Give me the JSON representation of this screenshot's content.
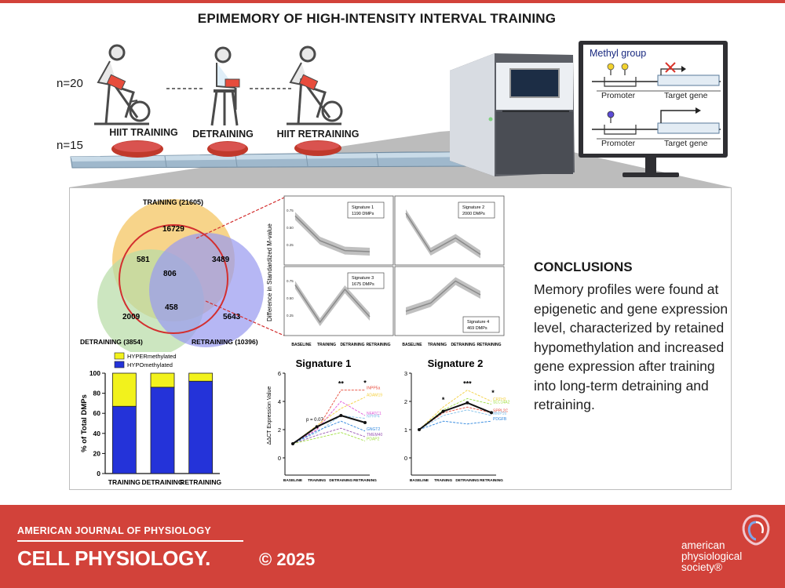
{
  "title": "EPIMEMORY OF HIGH-INTENSITY INTERVAL TRAINING",
  "study": {
    "n_top": "n=20",
    "n_bottom": "n=15",
    "phases": [
      "HIIT TRAINING",
      "DETRAINING",
      "HIIT RETRAINING"
    ]
  },
  "monitor": {
    "methyl_group": "Methyl group",
    "promoter": "Promoter",
    "target_gene": "Target gene"
  },
  "venn": {
    "training_label": "TRAINING (21605)",
    "detraining_label": "DETRAINING (3854)",
    "retraining_label": "RETRAINING (10396)",
    "regions": {
      "training_only": "16729",
      "train_detrain": "581",
      "train_retrain": "3489",
      "all_three": "806",
      "detrain_retrain": "458",
      "detrain_only": "2009",
      "retrain_only": "5643"
    },
    "colors": {
      "training": "#f5c869",
      "detraining": "#b9dca8",
      "retraining": "#9a9bf0",
      "circle": "#d32f2f"
    }
  },
  "signatures": {
    "ylabel": "Difference in Standardized M-value",
    "xlabels": [
      "BASELINE",
      "TRAINING",
      "DETRAINING",
      "RETRAINING"
    ],
    "ticks": [
      "0.75",
      "0.50",
      "0.25",
      "0.75"
    ],
    "panels": [
      {
        "name": "Signature 1",
        "count": "1190 DMPs",
        "values": [
          0.75,
          0.3,
          0.12,
          0.1
        ]
      },
      {
        "name": "Signature 2",
        "count": "2000 DMPs",
        "values": [
          0.8,
          0.1,
          0.35,
          0.05
        ]
      },
      {
        "name": "Signature 3",
        "count": "1675 DMPs",
        "values": [
          0.78,
          0.1,
          0.7,
          0.2
        ]
      },
      {
        "name": "Signature 4",
        "count": "469 DMPs",
        "values": [
          0.3,
          0.45,
          0.85,
          0.6
        ]
      }
    ]
  },
  "chart_data": [
    {
      "type": "bar",
      "stacked": true,
      "categories": [
        "TRAINING",
        "DETRAINING",
        "RETRAINING"
      ],
      "series": [
        {
          "name": "HYPOmethylated",
          "values": [
            67,
            86,
            92
          ],
          "color": "#2433d9"
        },
        {
          "name": "HYPERmethylated",
          "values": [
            33,
            14,
            8
          ],
          "color": "#f2f21c"
        }
      ],
      "ylabel": "% of Total DMPs",
      "ylim": [
        0,
        100
      ],
      "yticks": [
        0,
        20,
        40,
        60,
        80,
        100
      ],
      "legend": "top"
    },
    {
      "type": "line",
      "title": "Signature 1",
      "ylabel": "ΔΔCT Expression Value",
      "x": [
        "BASELINE",
        "TRAINING",
        "DETRAINING",
        "RETRAINING"
      ],
      "ylim": [
        0,
        6
      ],
      "yticks": [
        0,
        2,
        4,
        6
      ],
      "series": [
        {
          "name": "INPP5a",
          "values": [
            1,
            2.0,
            4.8,
            4.8
          ],
          "color": "#e74c3c"
        },
        {
          "name": "ADAM19",
          "values": [
            1,
            2.3,
            3.5,
            4.3
          ],
          "color": "#f4d03f"
        },
        {
          "name": "NFATC1",
          "values": [
            1,
            2.0,
            4.0,
            3.0
          ],
          "color": "#e056d6"
        },
        {
          "name": "NPHP4",
          "values": [
            1,
            1.8,
            3.0,
            2.8
          ],
          "color": "#85c1e9"
        },
        {
          "name": "GNGT2",
          "values": [
            1,
            1.9,
            2.6,
            1.9
          ],
          "color": "#2e86de"
        },
        {
          "name": "TMEM40",
          "values": [
            1,
            1.6,
            2.1,
            1.5
          ],
          "color": "#9b59b6"
        },
        {
          "name": "PDAP2",
          "values": [
            1,
            1.4,
            1.8,
            1.2
          ],
          "color": "#a3e048"
        },
        {
          "name": "",
          "values": [
            1,
            2.2,
            3.0,
            2.5
          ],
          "color": "#111111"
        }
      ],
      "annotations": [
        "p = 0.07",
        "**",
        "*"
      ]
    },
    {
      "type": "line",
      "title": "Signature 2",
      "x": [
        "BASELINE",
        "TRAINING",
        "DETRAINING",
        "RETRAINING"
      ],
      "ylim": [
        0,
        3
      ],
      "yticks": [
        0,
        1,
        2,
        3
      ],
      "series": [
        {
          "name": "CRTH2",
          "values": [
            1,
            1.8,
            2.4,
            2.0
          ],
          "color": "#f4d03f"
        },
        {
          "name": "SLC14A2",
          "values": [
            1,
            1.7,
            2.1,
            1.9
          ],
          "color": "#a3e048"
        },
        {
          "name": "SPPL2C",
          "values": [
            1,
            1.6,
            1.8,
            1.6
          ],
          "color": "#e74c3c"
        },
        {
          "name": "MMP16",
          "values": [
            1,
            1.5,
            1.7,
            1.5
          ],
          "color": "#85c1e9"
        },
        {
          "name": "PDGFB",
          "values": [
            1,
            1.3,
            1.2,
            1.3
          ],
          "color": "#2e86de"
        },
        {
          "name": "",
          "values": [
            1,
            1.65,
            1.95,
            1.6
          ],
          "color": "#111111"
        }
      ],
      "annotations": [
        "*",
        "***",
        "*"
      ]
    }
  ],
  "conclusions": {
    "heading": "CONCLUSIONS",
    "body": "Memory profiles were found at epigenetic and gene expression level, characterized by retained hypomethylation and increased gene expression after training into long-term detraining and retraining."
  },
  "footer": {
    "journal_top": "AMERICAN JOURNAL OF PHYSIOLOGY",
    "journal_main": "CELL PHYSIOLOGY.",
    "copyright": "© 2025",
    "society_1": "american",
    "society_2": "physiological",
    "society_3": "society®"
  }
}
